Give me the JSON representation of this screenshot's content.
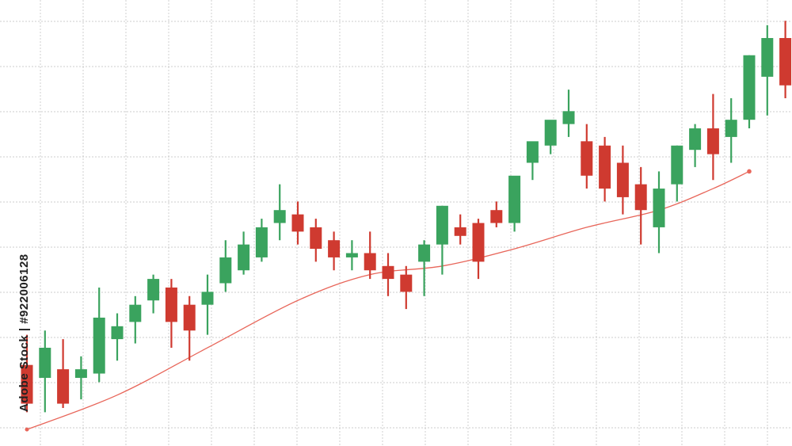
{
  "stock_label": "Adobe Stock | #922006128",
  "colors": {
    "up": "#3aa35e",
    "down": "#cf3a30",
    "trend": "#e8665a",
    "grid": "#bcbcbc",
    "background": "#ffffff"
  },
  "chart_data": {
    "type": "candlestick",
    "title": "",
    "xlabel": "",
    "ylabel": "",
    "ylim": [
      0,
      100
    ],
    "grid": true,
    "legend": "none",
    "candles": [
      {
        "o": 17,
        "h": 24,
        "l": 6,
        "c": 8
      },
      {
        "o": 14,
        "h": 25,
        "l": 6,
        "c": 21
      },
      {
        "o": 16,
        "h": 23,
        "l": 7,
        "c": 8
      },
      {
        "o": 14,
        "h": 19,
        "l": 9,
        "c": 16
      },
      {
        "o": 15,
        "h": 35,
        "l": 13,
        "c": 28
      },
      {
        "o": 23,
        "h": 29,
        "l": 18,
        "c": 26
      },
      {
        "o": 27,
        "h": 33,
        "l": 22,
        "c": 31
      },
      {
        "o": 32,
        "h": 38,
        "l": 29,
        "c": 37
      },
      {
        "o": 35,
        "h": 37,
        "l": 21,
        "c": 27
      },
      {
        "o": 31,
        "h": 33,
        "l": 18,
        "c": 25
      },
      {
        "o": 31,
        "h": 38,
        "l": 24,
        "c": 34
      },
      {
        "o": 36,
        "h": 46,
        "l": 34,
        "c": 42
      },
      {
        "o": 39,
        "h": 48,
        "l": 38,
        "c": 45
      },
      {
        "o": 42,
        "h": 51,
        "l": 41,
        "c": 49
      },
      {
        "o": 50,
        "h": 59,
        "l": 46,
        "c": 53
      },
      {
        "o": 52,
        "h": 55,
        "l": 45,
        "c": 48
      },
      {
        "o": 49,
        "h": 51,
        "l": 41,
        "c": 44
      },
      {
        "o": 46,
        "h": 48,
        "l": 39,
        "c": 42
      },
      {
        "o": 42,
        "h": 46,
        "l": 39,
        "c": 43
      },
      {
        "o": 43,
        "h": 48,
        "l": 37,
        "c": 39
      },
      {
        "o": 40,
        "h": 43,
        "l": 33,
        "c": 37
      },
      {
        "o": 38,
        "h": 40,
        "l": 30,
        "c": 34
      },
      {
        "o": 41,
        "h": 46,
        "l": 33,
        "c": 45
      },
      {
        "o": 45,
        "h": 54,
        "l": 38,
        "c": 54
      },
      {
        "o": 49,
        "h": 52,
        "l": 45,
        "c": 47
      },
      {
        "o": 50,
        "h": 51,
        "l": 37,
        "c": 41
      },
      {
        "o": 53,
        "h": 55,
        "l": 49,
        "c": 50
      },
      {
        "o": 50,
        "h": 60,
        "l": 48,
        "c": 61
      },
      {
        "o": 64,
        "h": 68,
        "l": 60,
        "c": 69
      },
      {
        "o": 68,
        "h": 73,
        "l": 66,
        "c": 74
      },
      {
        "o": 73,
        "h": 81,
        "l": 70,
        "c": 76
      },
      {
        "o": 69,
        "h": 73,
        "l": 58,
        "c": 61
      },
      {
        "o": 68,
        "h": 70,
        "l": 55,
        "c": 58
      },
      {
        "o": 64,
        "h": 68,
        "l": 52,
        "c": 56
      },
      {
        "o": 59,
        "h": 63,
        "l": 45,
        "c": 53
      },
      {
        "o": 49,
        "h": 62,
        "l": 43,
        "c": 58
      },
      {
        "o": 59,
        "h": 68,
        "l": 55,
        "c": 68
      },
      {
        "o": 67,
        "h": 73,
        "l": 63,
        "c": 72
      },
      {
        "o": 72,
        "h": 80,
        "l": 60,
        "c": 66
      },
      {
        "o": 70,
        "h": 79,
        "l": 64,
        "c": 74
      },
      {
        "o": 74,
        "h": 89,
        "l": 72,
        "c": 89
      },
      {
        "o": 84,
        "h": 96,
        "l": 75,
        "c": 93
      },
      {
        "o": 93,
        "h": 97,
        "l": 79,
        "c": 82
      }
    ],
    "trend_line": [
      {
        "i": 0,
        "v": 2
      },
      {
        "i": 5,
        "v": 10
      },
      {
        "i": 10,
        "v": 21
      },
      {
        "i": 15,
        "v": 32
      },
      {
        "i": 19,
        "v": 38
      },
      {
        "i": 23,
        "v": 40
      },
      {
        "i": 27,
        "v": 44
      },
      {
        "i": 31,
        "v": 49
      },
      {
        "i": 35,
        "v": 53
      },
      {
        "i": 38,
        "v": 58
      },
      {
        "i": 40,
        "v": 62
      }
    ]
  }
}
